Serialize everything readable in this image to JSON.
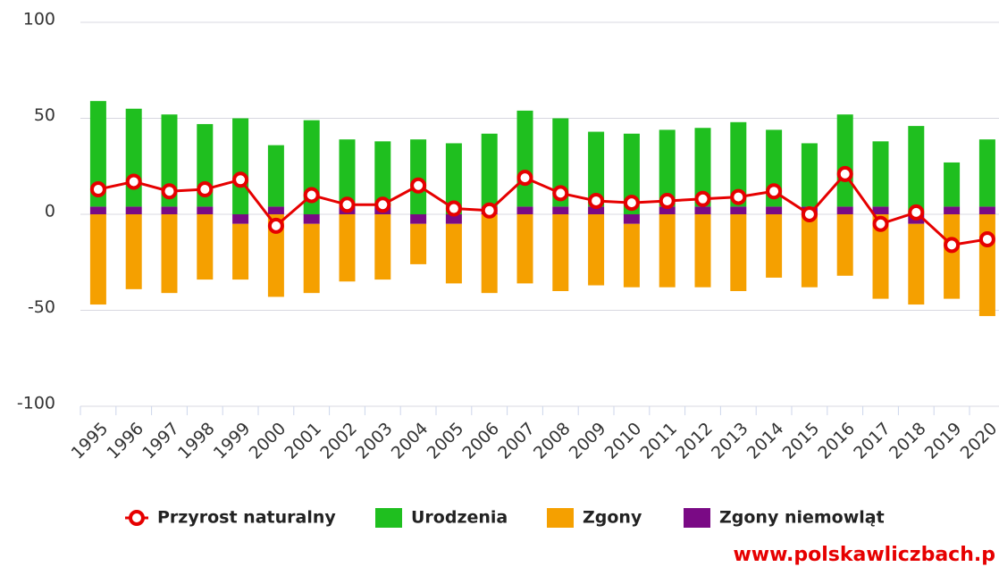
{
  "chart_data": {
    "type": "bar",
    "categories": [
      "1995",
      "1996",
      "1997",
      "1998",
      "1999",
      "2000",
      "2001",
      "2002",
      "2003",
      "2004",
      "2005",
      "2006",
      "2007",
      "2008",
      "2009",
      "2010",
      "2011",
      "2012",
      "2013",
      "2014",
      "2015",
      "2016",
      "2017",
      "2018",
      "2019",
      "2020"
    ],
    "series": [
      {
        "name": "Przyrost naturalny",
        "type": "line",
        "color": "#e60000",
        "values": [
          13,
          17,
          12,
          13,
          18,
          -6,
          10,
          5,
          5,
          15,
          3,
          2,
          19,
          11,
          7,
          6,
          7,
          8,
          9,
          12,
          0,
          21,
          -5,
          1,
          -16,
          -13
        ]
      },
      {
        "name": "Urodzenia",
        "type": "bar",
        "color": "#1fbf1f",
        "values": [
          55,
          51,
          48,
          43,
          50,
          32,
          49,
          35,
          34,
          39,
          37,
          38,
          50,
          46,
          39,
          42,
          40,
          41,
          44,
          40,
          33,
          48,
          34,
          46,
          23,
          35
        ]
      },
      {
        "name": "Zgony",
        "type": "bar",
        "color": "#f5a000",
        "values": [
          -47,
          -39,
          -41,
          -34,
          -29,
          -43,
          -36,
          -35,
          -34,
          -21,
          -31,
          -41,
          -36,
          -40,
          -37,
          -33,
          -38,
          -38,
          -40,
          -33,
          -38,
          -32,
          -44,
          -42,
          -44,
          -53
        ]
      },
      {
        "name": "Zgony niemowląt",
        "type": "bar",
        "color": "#7a0a85",
        "values": [
          4,
          4,
          4,
          4,
          -5,
          4,
          -5,
          4,
          4,
          -5,
          -5,
          4,
          4,
          4,
          4,
          -5,
          4,
          4,
          4,
          4,
          4,
          4,
          4,
          -5,
          4,
          4
        ]
      }
    ],
    "ylim": [
      -100,
      100
    ],
    "yticks": [
      -100,
      -50,
      0,
      50,
      100
    ],
    "grid": true,
    "watermark": "www.polskawliczbach.p"
  }
}
